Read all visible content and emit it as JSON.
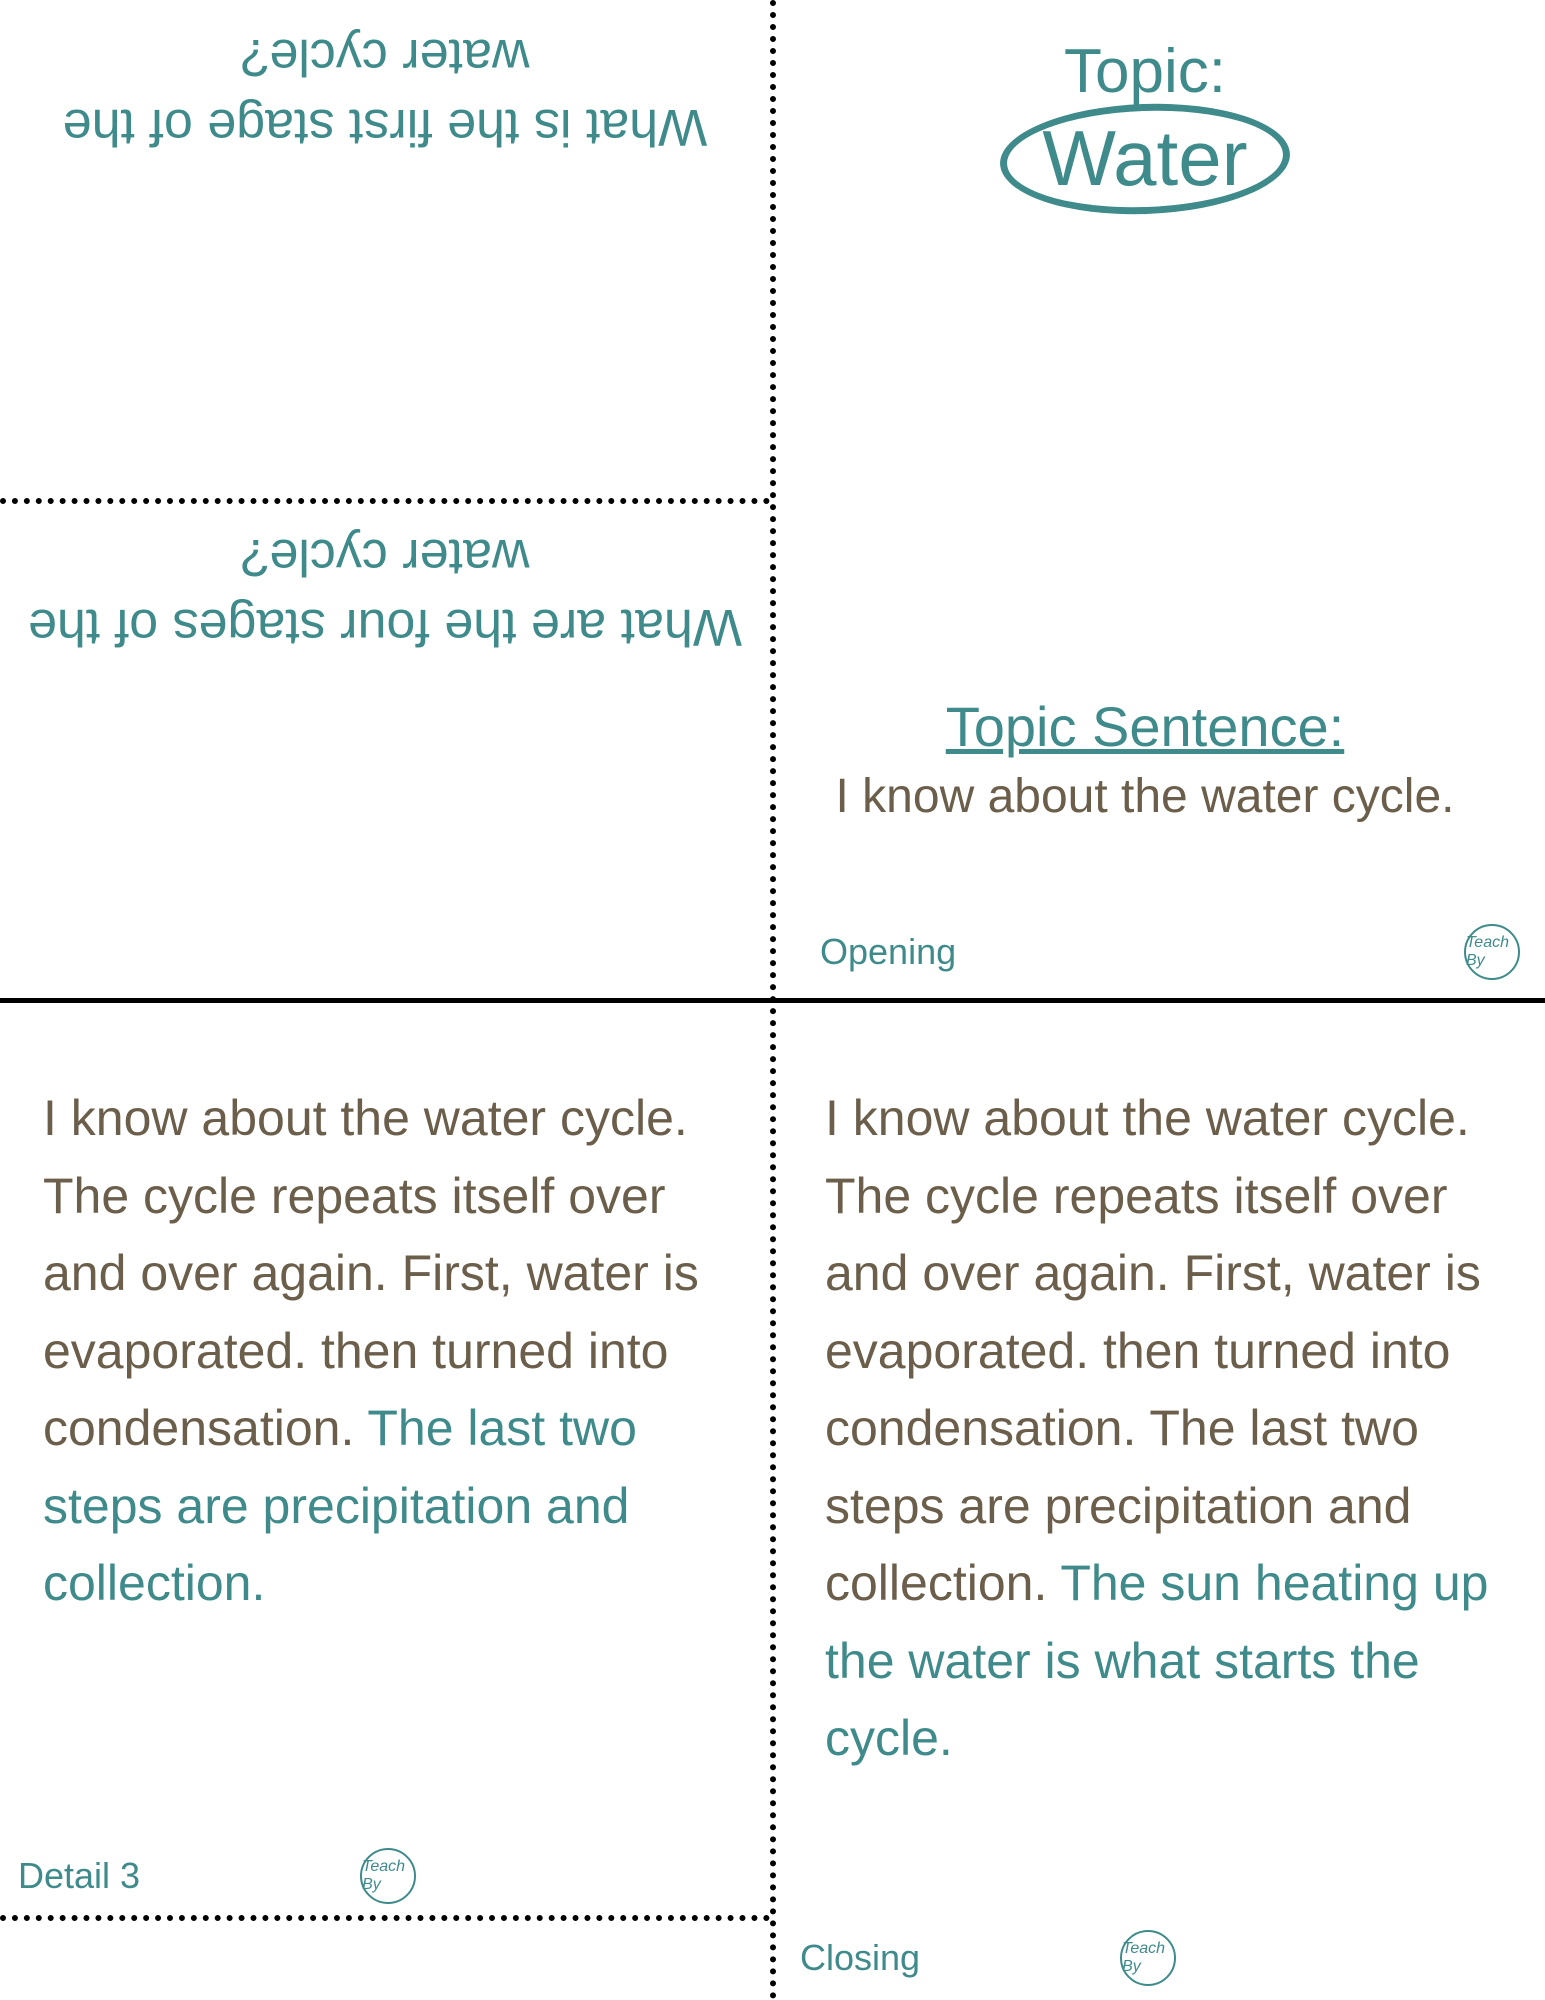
{
  "colors": {
    "teal": "#3f8a8a",
    "brown": "#6b5e4a",
    "black": "#000000",
    "bg": "#ffffff"
  },
  "typography": {
    "family": "handwritten-cursive",
    "heading_size_pt": 56,
    "body_size_pt": 50,
    "small_label_pt": 36
  },
  "top_left": {
    "question1": "What is the first stage of the water cycle?",
    "question2": "What are the four stages of the water cycle?"
  },
  "top_right": {
    "topic_label": "Topic:",
    "topic_word": "Water",
    "topic_sentence_label": "Topic Sentence:",
    "topic_sentence": "I know about the water cycle.",
    "footer_label": "Opening",
    "badge_text": "Teach By"
  },
  "bottom_left": {
    "para_brown": "I know about the water cycle. The cycle repeats itself over and over again. First, water is evaporated. then turned into condensation. ",
    "para_teal": "The last two steps are precipitation and collection.",
    "footer_label": "Detail 3",
    "badge_text": "Teach By"
  },
  "bottom_right": {
    "para_brown": "I know about the water cycle. The cycle repeats itself over and over again. First, water is evaporated. then turned into condensation. The last two steps are precipitation and collection. ",
    "para_teal": "The sun heating up the water is what starts the cycle.",
    "footer_label": "Closing",
    "badge_text": "Teach By"
  }
}
